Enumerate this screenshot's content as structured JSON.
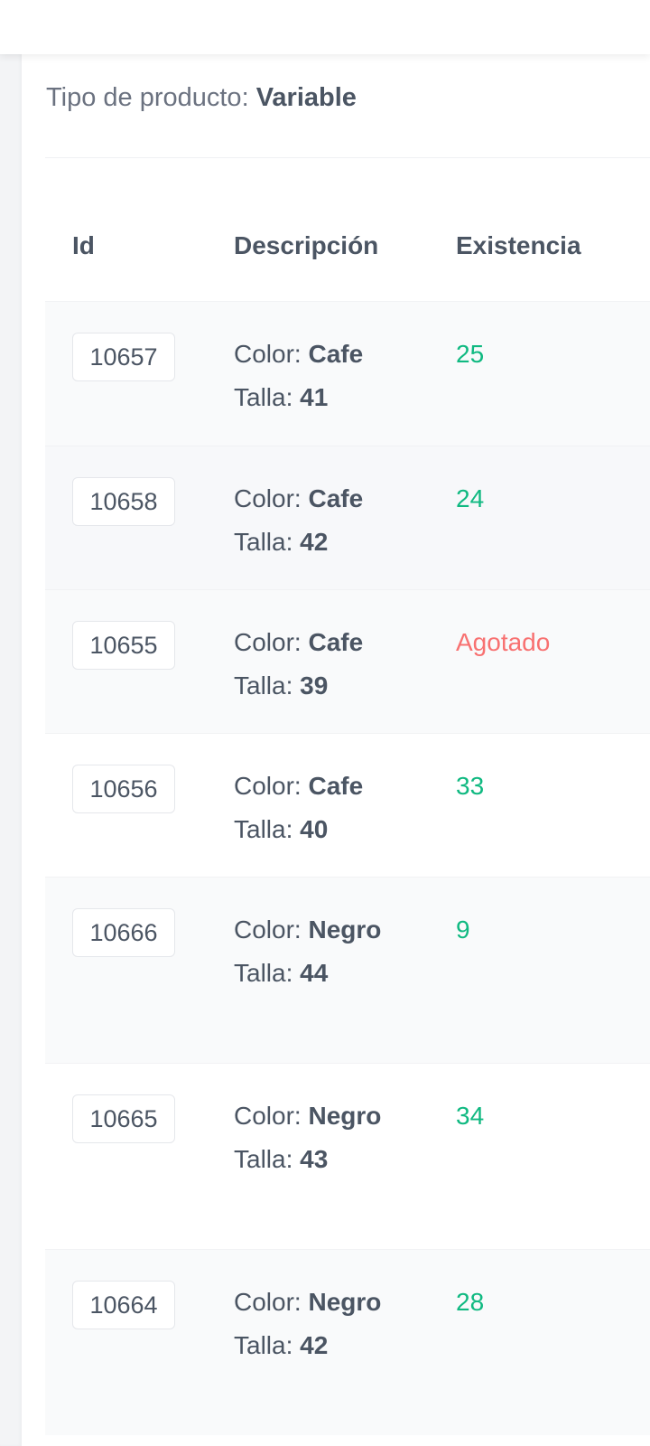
{
  "product": {
    "type_label": "Tipo de producto:",
    "type_value": "Variable"
  },
  "table": {
    "headers": {
      "id": "Id",
      "description": "Descripción",
      "stock": "Existencia"
    },
    "color_label": "Color:",
    "size_label": "Talla:",
    "rows": [
      {
        "id": "10657",
        "color": "Cafe",
        "size": "41",
        "stock": "25",
        "status": "in-stock"
      },
      {
        "id": "10658",
        "color": "Cafe",
        "size": "42",
        "stock": "24",
        "status": "in-stock"
      },
      {
        "id": "10655",
        "color": "Cafe",
        "size": "39",
        "stock": "Agotado",
        "status": "out-of-stock"
      },
      {
        "id": "10656",
        "color": "Cafe",
        "size": "40",
        "stock": "33",
        "status": "in-stock"
      },
      {
        "id": "10666",
        "color": "Negro",
        "size": "44",
        "stock": "9",
        "status": "in-stock"
      },
      {
        "id": "10665",
        "color": "Negro",
        "size": "43",
        "stock": "34",
        "status": "in-stock"
      },
      {
        "id": "10664",
        "color": "Negro",
        "size": "42",
        "stock": "28",
        "status": "in-stock"
      }
    ]
  },
  "colors": {
    "in_stock": "#10b981",
    "out_of_stock": "#f87171"
  }
}
